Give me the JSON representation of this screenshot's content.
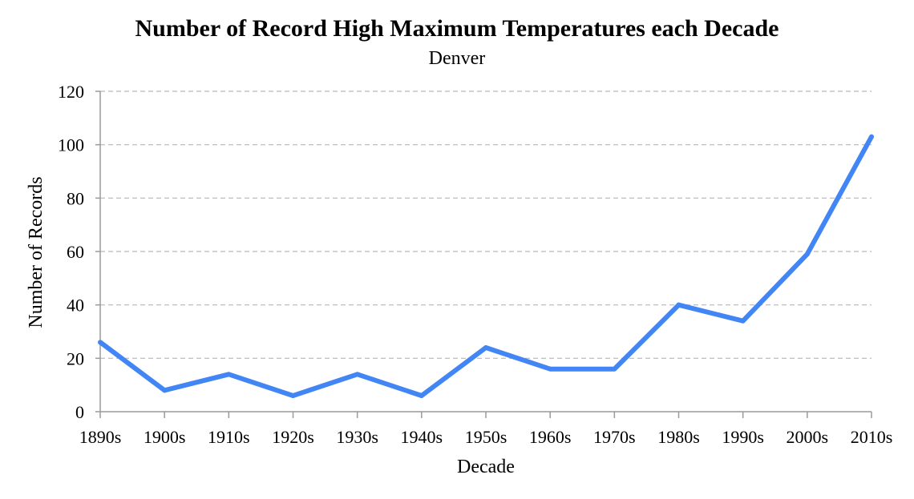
{
  "chart_data": {
    "type": "line",
    "title": "Number of Record High Maximum Temperatures each Decade",
    "subtitle": "Denver",
    "xlabel": "Decade",
    "ylabel": "Number of Records",
    "categories": [
      "1890s",
      "1900s",
      "1910s",
      "1920s",
      "1930s",
      "1940s",
      "1950s",
      "1960s",
      "1970s",
      "1980s",
      "1990s",
      "2000s",
      "2010s"
    ],
    "series": [
      {
        "values": [
          26,
          8,
          14,
          6,
          14,
          6,
          24,
          16,
          16,
          40,
          34,
          59,
          103
        ]
      }
    ],
    "ylim": [
      0,
      120
    ],
    "yticks": [
      "0",
      "20",
      "40",
      "60",
      "80",
      "100",
      "120"
    ],
    "grid": true,
    "line_color": "#4285f4"
  }
}
